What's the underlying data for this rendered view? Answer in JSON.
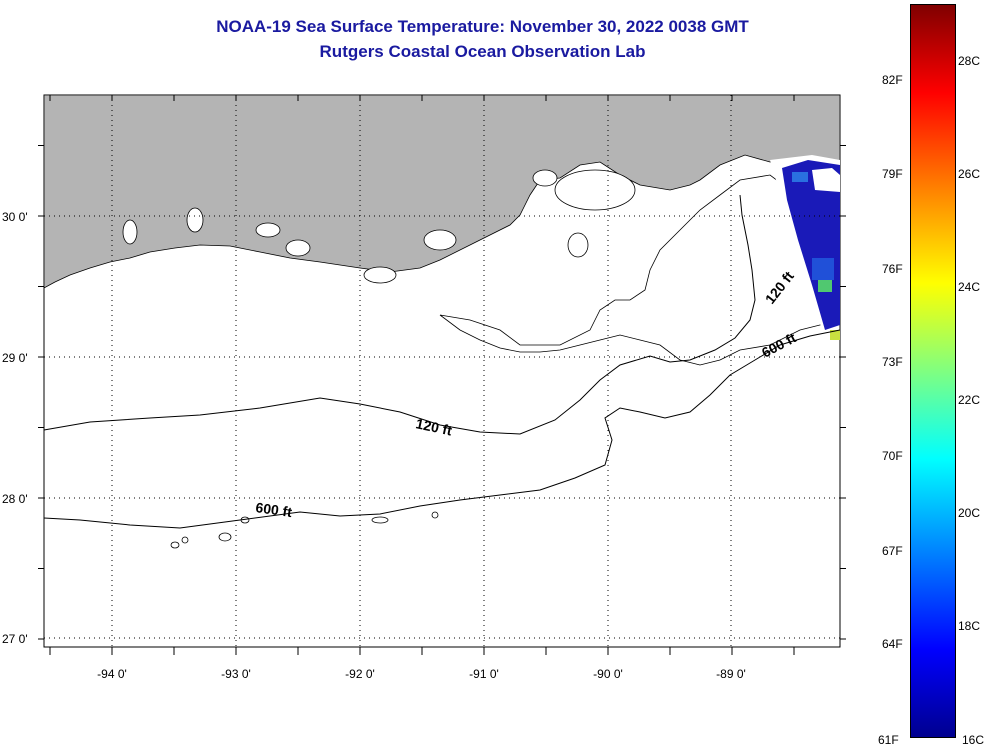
{
  "title": {
    "line1": "NOAA-19 Sea Surface Temperature:  November 30, 2022 0038 GMT",
    "line2": "Rutgers Coastal Ocean Observation Lab"
  },
  "map": {
    "longitude_labels": [
      "-94 0'",
      "-93 0'",
      "-92 0'",
      "-91 0'",
      "-90 0'",
      "-89 0'"
    ],
    "latitude_labels": [
      "30 0'",
      "29 0'",
      "28 0'",
      "27 0'"
    ],
    "contour_labels": {
      "c120_west": "120 ft",
      "c600_west": "600 ft",
      "c120_east": "120 ft",
      "c600_east": "600 ft"
    },
    "colors": {
      "land": "#b4b4b4",
      "water": "#ffffff",
      "cold_sst": "#1a1ab8"
    }
  },
  "colorbar": {
    "fahrenheit_labels": [
      "82F",
      "79F",
      "76F",
      "73F",
      "70F",
      "67F",
      "64F",
      "61F"
    ],
    "celsius_labels": [
      "28C",
      "26C",
      "24C",
      "22C",
      "20C",
      "18C",
      "16C"
    ],
    "range_celsius": [
      16,
      29
    ],
    "colormap": "jet"
  }
}
